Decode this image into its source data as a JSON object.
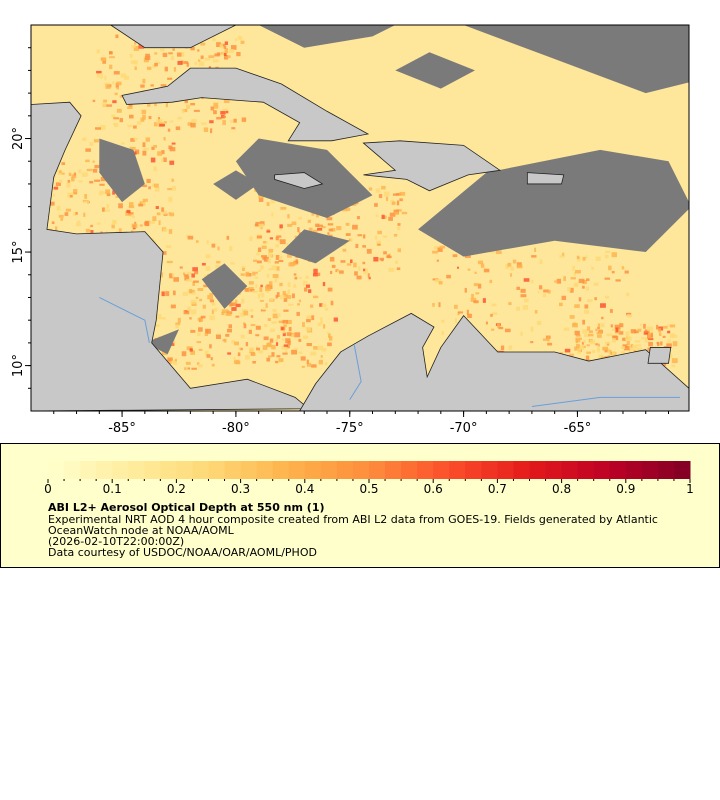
{
  "map": {
    "lon_range": [
      -89,
      -60.1
    ],
    "lat_range": [
      8,
      25
    ],
    "x_ticks": [
      {
        "value": -85,
        "label": "-85°"
      },
      {
        "value": -80,
        "label": "-80°"
      },
      {
        "value": -75,
        "label": "-75°"
      },
      {
        "value": -70,
        "label": "-70°"
      },
      {
        "value": -65,
        "label": "-65°"
      }
    ],
    "y_ticks": [
      {
        "value": 20,
        "label": "20°"
      },
      {
        "value": 15,
        "label": "15°"
      },
      {
        "value": 10,
        "label": "10°"
      }
    ],
    "colors": {
      "land": "#c8c8c8",
      "cloud_nodata": "#7a7a7a",
      "rivers": "#6a9fd8",
      "borders": "#7a7a7a",
      "coast": "#222222"
    }
  },
  "legend": {
    "colorbar_range": [
      0,
      1
    ],
    "colorbar_ticks": [
      "0",
      "0.1",
      "0.2",
      "0.3",
      "0.4",
      "0.5",
      "0.6",
      "0.7",
      "0.8",
      "0.9",
      "1"
    ],
    "colormap": [
      "#ffffcc",
      "#ffeda0",
      "#fed976",
      "#feb24c",
      "#fd8d3c",
      "#fc4e2a",
      "#e31a1c",
      "#bd0026",
      "#800026"
    ],
    "title": "ABI L2+ Aerosol Optical Depth at 550 nm (1)",
    "line1": "Experimental NRT AOD 4 hour composite created from ABI L2 data from GOES-19. Fields generated by Atlantic",
    "line2": "OceanWatch node at NOAA/AOML",
    "line3": "(2026-02-10T22:00:00Z)",
    "line4": "Data courtesy of USDOC/NOAA/OAR/AOML/PHOD"
  }
}
